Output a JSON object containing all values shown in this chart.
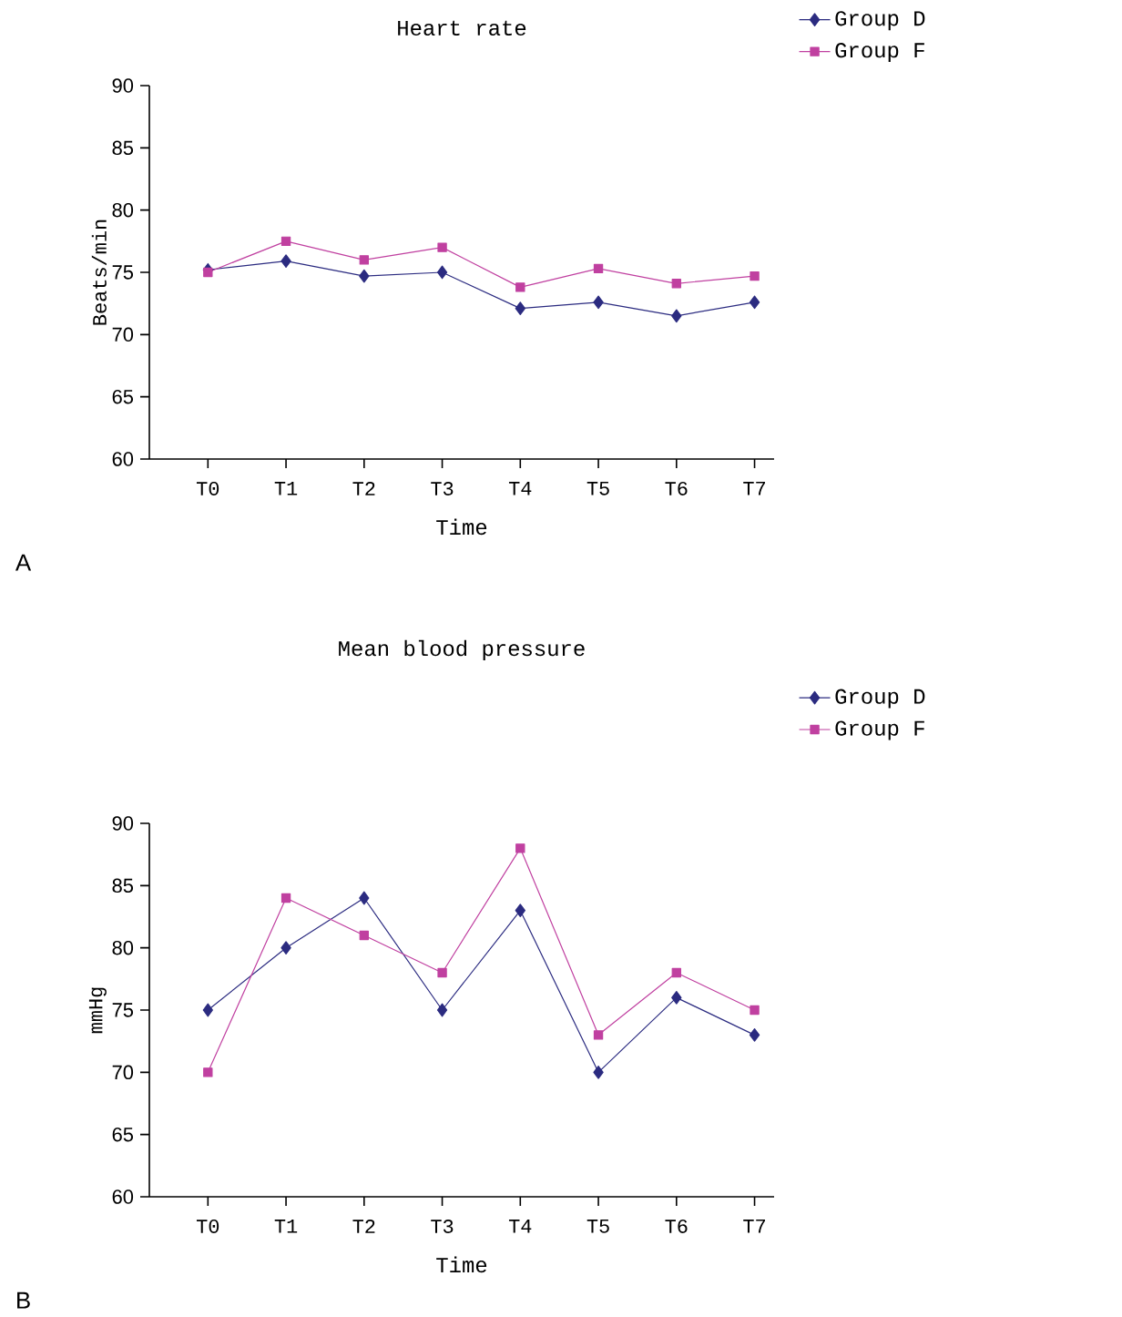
{
  "chart_data": [
    {
      "type": "line",
      "title": "Heart rate",
      "xlabel": "Time",
      "ylabel": "Beats/min",
      "categories": [
        "T0",
        "T1",
        "T2",
        "T3",
        "T4",
        "T5",
        "T6",
        "T7"
      ],
      "ylim": [
        60,
        90
      ],
      "yticks": [
        60,
        65,
        70,
        75,
        80,
        85,
        90
      ],
      "legend": "top right",
      "annotations": [
        "A"
      ],
      "series": [
        {
          "name": "Group D",
          "color": "#2b2b80",
          "marker": "diamond",
          "values": [
            75.2,
            75.9,
            74.7,
            75.0,
            72.1,
            72.6,
            71.5,
            72.6
          ]
        },
        {
          "name": "Group F",
          "color": "#c040a0",
          "marker": "square",
          "values": [
            75.0,
            77.5,
            76.0,
            77.0,
            73.8,
            75.3,
            74.1,
            74.7
          ]
        }
      ]
    },
    {
      "type": "line",
      "title": "Mean blood pressure",
      "xlabel": "Time",
      "ylabel": "mmHg",
      "categories": [
        "T0",
        "T1",
        "T2",
        "T3",
        "T4",
        "T5",
        "T6",
        "T7"
      ],
      "ylim": [
        60,
        90
      ],
      "yticks": [
        60,
        65,
        70,
        75,
        80,
        85,
        90
      ],
      "legend": "top right",
      "annotations": [
        "B"
      ],
      "series": [
        {
          "name": "Group D",
          "color": "#2b2b80",
          "marker": "diamond",
          "values": [
            75,
            80,
            84,
            75,
            83,
            70,
            76,
            73
          ]
        },
        {
          "name": "Group F",
          "color": "#c040a0",
          "marker": "square",
          "values": [
            70,
            84,
            81,
            78,
            88,
            73,
            78,
            75
          ]
        }
      ]
    }
  ]
}
